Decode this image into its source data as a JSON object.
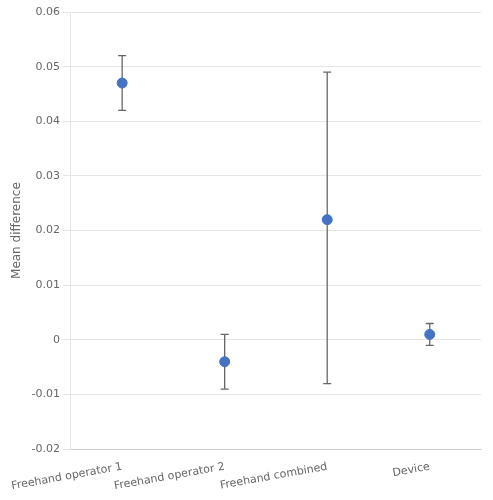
{
  "chart_data": {
    "type": "scatter",
    "categories": [
      "Freehand operator 1",
      "Freehand operator 2",
      "Freehand combined",
      "Device"
    ],
    "values": [
      0.047,
      -0.004,
      0.022,
      0.001
    ],
    "error_low": [
      0.005,
      0.005,
      0.03,
      0.002
    ],
    "error_high": [
      0.005,
      0.005,
      0.027,
      0.002
    ],
    "color": "#4472C4",
    "ylabel": "Mean difference",
    "ylim": [
      -0.02,
      0.06
    ],
    "yticks": [
      -0.02,
      -0.01,
      0,
      0.01,
      0.02,
      0.03,
      0.04,
      0.05,
      0.06
    ],
    "grid": true
  }
}
